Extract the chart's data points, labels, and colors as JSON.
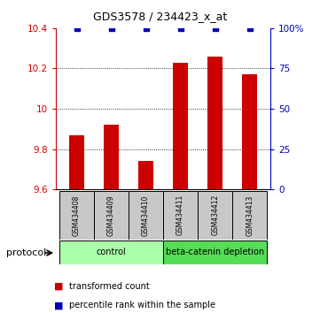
{
  "title": "GDS3578 / 234423_x_at",
  "samples": [
    "GSM434408",
    "GSM434409",
    "GSM434410",
    "GSM434411",
    "GSM434412",
    "GSM434413"
  ],
  "red_values": [
    9.87,
    9.92,
    9.74,
    10.23,
    10.26,
    10.17
  ],
  "blue_values": [
    100,
    100,
    100,
    100,
    100,
    100
  ],
  "ylim_left": [
    9.6,
    10.4
  ],
  "ylim_right": [
    0,
    100
  ],
  "yticks_left": [
    9.6,
    9.8,
    10.0,
    10.2,
    10.4
  ],
  "yticks_right": [
    0,
    25,
    50,
    75,
    100
  ],
  "bar_color": "#CC0000",
  "dot_color": "#0000BB",
  "bar_width": 0.45,
  "legend_red": "transformed count",
  "legend_blue": "percentile rank within the sample",
  "plot_bg": "#ffffff",
  "axis_color_left": "#CC0000",
  "axis_color_right": "#0000BB",
  "control_color": "#AAFFAA",
  "beta_color": "#55DD55",
  "sample_box_color": "#C8C8C8"
}
